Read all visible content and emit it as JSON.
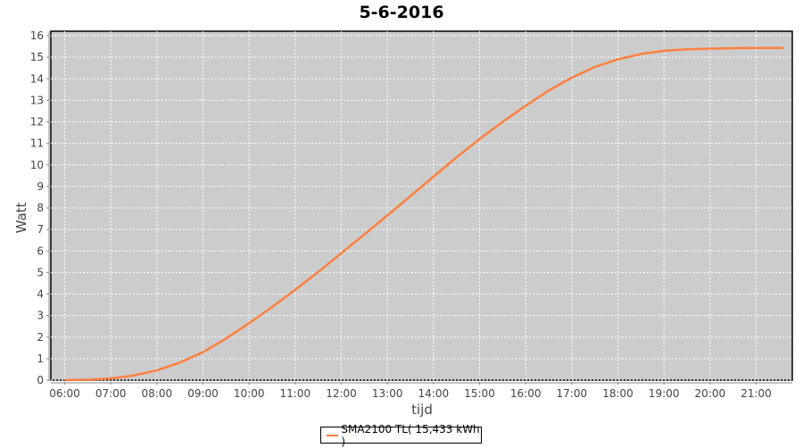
{
  "chart_data": {
    "type": "line",
    "title": "5-6-2016",
    "xlabel": "tijd",
    "ylabel": "Watt",
    "ylim": [
      0,
      16
    ],
    "xlim": [
      "05:42",
      "21:47"
    ],
    "x_ticks": [
      "06:00",
      "07:00",
      "08:00",
      "09:00",
      "10:00",
      "11:00",
      "12:00",
      "13:00",
      "14:00",
      "15:00",
      "16:00",
      "17:00",
      "18:00",
      "19:00",
      "20:00",
      "21:00"
    ],
    "y_ticks": [
      0,
      1,
      2,
      3,
      4,
      5,
      6,
      7,
      8,
      9,
      10,
      11,
      12,
      13,
      14,
      15,
      16
    ],
    "grid": true,
    "legend_position": "bottom",
    "background": "#cccccc",
    "series": [
      {
        "name": "SMA2100 TL( 15,433 kWh )",
        "color": "#ff7f3f",
        "x": [
          "06:00",
          "06:30",
          "07:00",
          "07:30",
          "08:00",
          "08:30",
          "09:00",
          "09:30",
          "10:00",
          "10:30",
          "11:00",
          "11:30",
          "12:00",
          "12:30",
          "13:00",
          "13:30",
          "14:00",
          "14:30",
          "15:00",
          "15:30",
          "16:00",
          "16:30",
          "17:00",
          "17:30",
          "18:00",
          "18:30",
          "19:00",
          "19:30",
          "20:00",
          "20:30",
          "21:00",
          "21:35"
        ],
        "y": [
          0,
          0.02,
          0.08,
          0.22,
          0.45,
          0.82,
          1.3,
          1.93,
          2.65,
          3.4,
          4.2,
          5.03,
          5.9,
          6.77,
          7.65,
          8.55,
          9.45,
          10.35,
          11.2,
          12.0,
          12.75,
          13.45,
          14.05,
          14.55,
          14.9,
          15.15,
          15.3,
          15.37,
          15.4,
          15.42,
          15.43,
          15.43
        ]
      }
    ]
  }
}
